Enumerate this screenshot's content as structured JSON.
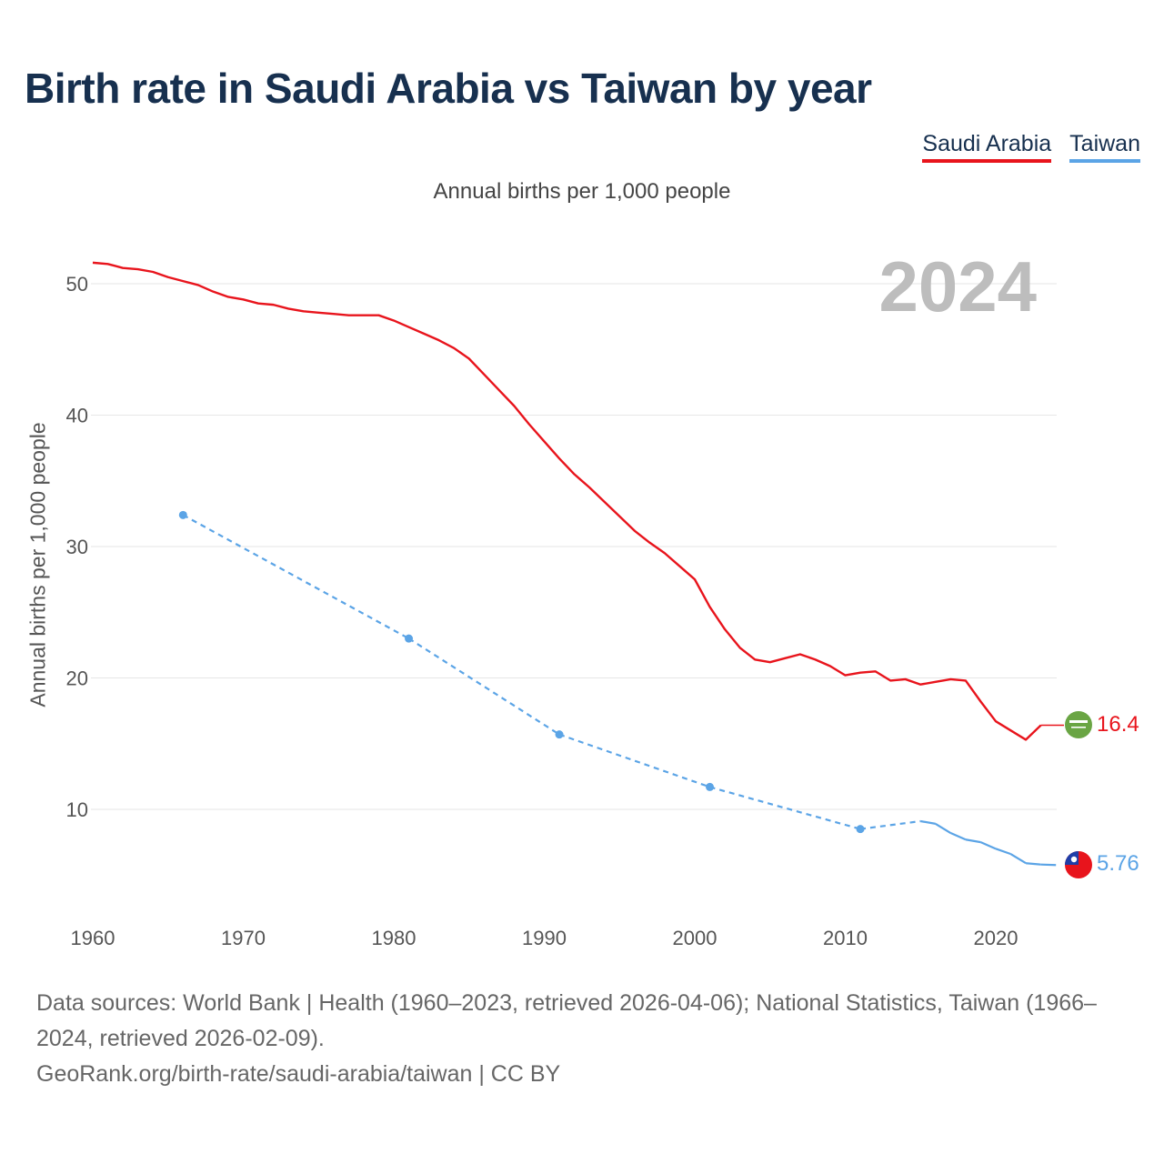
{
  "title": "Birth rate in Saudi Arabia vs Taiwan by year",
  "subtitle": "Annual births per 1,000 people",
  "legend": {
    "saudi": "Saudi Arabia",
    "taiwan": "Taiwan"
  },
  "year_label": "2024",
  "end_labels": {
    "saudi": "16.4",
    "taiwan": "5.76"
  },
  "footer": {
    "sources": "Data sources: World Bank | Health (1960–2023, retrieved 2026-04-06); National Statistics, Taiwan (1966–2024, retrieved 2026-02-09).",
    "attribution": "GeoRank.org/birth-rate/saudi-arabia/taiwan | CC BY"
  },
  "colors": {
    "saudi": "#e8141c",
    "taiwan": "#5ba4e6",
    "title": "#17304f"
  },
  "chart_data": {
    "type": "line",
    "title": "Birth rate in Saudi Arabia vs Taiwan by year",
    "ylabel": "Annual births per 1,000 people",
    "xlabel": "",
    "xlim": [
      1960,
      2024
    ],
    "ylim": [
      3,
      53
    ],
    "x_ticks": [
      1960,
      1970,
      1980,
      1990,
      2000,
      2010,
      2020
    ],
    "y_ticks": [
      10,
      20,
      30,
      40,
      50
    ],
    "series": [
      {
        "name": "Saudi Arabia",
        "color": "#e8141c",
        "style": "solid",
        "x": [
          1960,
          1961,
          1962,
          1963,
          1964,
          1965,
          1966,
          1967,
          1968,
          1969,
          1970,
          1971,
          1972,
          1973,
          1974,
          1975,
          1976,
          1977,
          1978,
          1979,
          1980,
          1981,
          1982,
          1983,
          1984,
          1985,
          1986,
          1987,
          1988,
          1989,
          1990,
          1991,
          1992,
          1993,
          1994,
          1995,
          1996,
          1997,
          1998,
          1999,
          2000,
          2001,
          2002,
          2003,
          2004,
          2005,
          2006,
          2007,
          2008,
          2009,
          2010,
          2011,
          2012,
          2013,
          2014,
          2015,
          2016,
          2017,
          2018,
          2019,
          2020,
          2021,
          2022,
          2023
        ],
        "values": [
          51.6,
          51.5,
          51.2,
          51.1,
          50.9,
          50.5,
          50.2,
          49.9,
          49.4,
          49.0,
          48.8,
          48.5,
          48.4,
          48.1,
          47.9,
          47.8,
          47.7,
          47.6,
          47.6,
          47.6,
          47.2,
          46.7,
          46.2,
          45.7,
          45.1,
          44.3,
          43.1,
          41.9,
          40.7,
          39.3,
          38.0,
          36.7,
          35.5,
          34.5,
          33.4,
          32.3,
          31.2,
          30.3,
          29.5,
          28.5,
          27.5,
          25.4,
          23.7,
          22.3,
          21.4,
          21.2,
          21.5,
          21.8,
          21.4,
          20.9,
          20.2,
          20.4,
          20.5,
          19.8,
          19.9,
          19.5,
          19.7,
          19.9,
          19.8,
          18.2,
          16.7,
          16.0,
          15.3,
          16.4
        ]
      },
      {
        "name": "Taiwan",
        "color": "#5ba4e6",
        "style": "dashed",
        "x": [
          1966,
          1981,
          1991,
          2001,
          2011,
          2015,
          2016,
          2017,
          2018,
          2019,
          2020,
          2021,
          2022,
          2023,
          2024
        ],
        "values": [
          32.4,
          23.0,
          15.7,
          11.7,
          8.5,
          9.1,
          8.9,
          8.2,
          7.7,
          7.5,
          7.0,
          6.6,
          5.9,
          5.8,
          5.76
        ]
      }
    ]
  }
}
